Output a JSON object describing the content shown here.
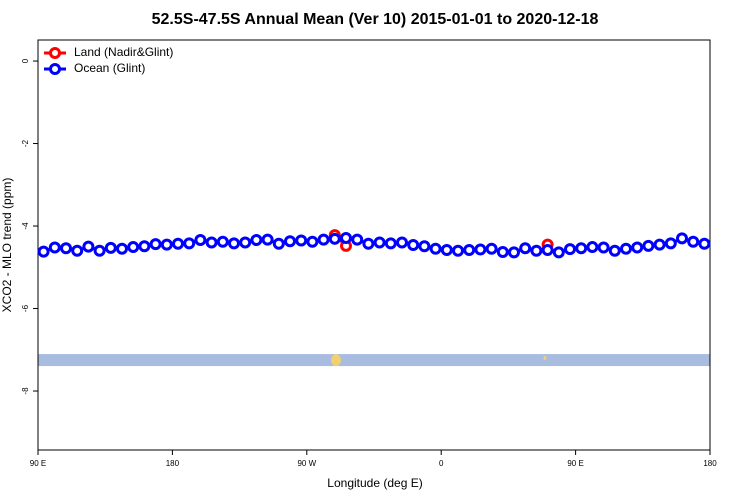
{
  "chart_data": {
    "type": "line",
    "title": "52.5S-47.5S Annual Mean (Ver 10)   2015-01-01 to 2020-12-18",
    "xlabel": "Longitude (deg E)",
    "ylabel": "XCO2 - MLO trend (ppm)",
    "x": [
      93.75,
      101.25,
      108.75,
      116.25,
      123.75,
      131.25,
      138.75,
      146.25,
      153.75,
      161.25,
      168.75,
      176.25,
      183.75,
      191.25,
      198.75,
      206.25,
      213.75,
      221.25,
      228.75,
      236.25,
      243.75,
      251.25,
      258.75,
      266.25,
      273.75,
      281.25,
      288.75,
      296.25,
      303.75,
      311.25,
      318.75,
      326.25,
      333.75,
      341.25,
      348.75,
      356.25,
      363.75,
      371.25,
      378.75,
      386.25,
      393.75,
      401.25,
      408.75,
      416.25,
      423.75,
      431.25,
      438.75,
      446.25,
      453.75,
      461.25,
      468.75,
      476.25,
      483.75,
      491.25,
      498.75,
      506.25,
      513.75,
      521.25,
      528.75,
      536.25
    ],
    "series": [
      {
        "name": "Land (Nadir&Glint)",
        "color": "#ff0000",
        "values": [
          null,
          null,
          null,
          null,
          null,
          null,
          null,
          null,
          null,
          null,
          null,
          null,
          null,
          null,
          null,
          null,
          null,
          null,
          null,
          null,
          null,
          null,
          null,
          null,
          null,
          null,
          -4.22,
          -4.48,
          null,
          null,
          null,
          null,
          null,
          null,
          null,
          null,
          null,
          null,
          null,
          null,
          null,
          null,
          null,
          null,
          null,
          -4.45,
          null,
          null,
          null,
          null,
          null,
          null,
          null,
          null,
          null,
          null,
          null,
          null,
          null,
          null
        ]
      },
      {
        "name": "Ocean (Glint)",
        "color": "#0000ff",
        "values": [
          -4.62,
          -4.52,
          -4.54,
          -4.6,
          -4.5,
          -4.6,
          -4.53,
          -4.55,
          -4.51,
          -4.49,
          -4.44,
          -4.45,
          -4.43,
          -4.42,
          -4.34,
          -4.4,
          -4.38,
          -4.42,
          -4.4,
          -4.34,
          -4.33,
          -4.43,
          -4.37,
          -4.35,
          -4.38,
          -4.33,
          -4.31,
          -4.29,
          -4.33,
          -4.43,
          -4.4,
          -4.42,
          -4.4,
          -4.46,
          -4.49,
          -4.55,
          -4.58,
          -4.6,
          -4.58,
          -4.57,
          -4.55,
          -4.63,
          -4.64,
          -4.54,
          -4.6,
          -4.58,
          -4.64,
          -4.56,
          -4.54,
          -4.51,
          -4.52,
          -4.6,
          -4.55,
          -4.52,
          -4.48,
          -4.45,
          -4.42,
          -4.3,
          -4.38,
          -4.43
        ]
      }
    ],
    "xlim": [
      90,
      540
    ],
    "xticks": [
      {
        "value": 90,
        "label": "90 E"
      },
      180,
      {
        "value": 270,
        "label": "90 W"
      },
      {
        "value": 360,
        "label": "0"
      },
      {
        "value": 450,
        "label": "90 E"
      },
      {
        "value": 540,
        "label": "180"
      }
    ],
    "ylim": [
      -9.43,
      0.51
    ],
    "yticks": [
      0,
      -2,
      -4,
      -6,
      -8
    ],
    "legend": "top-left"
  }
}
